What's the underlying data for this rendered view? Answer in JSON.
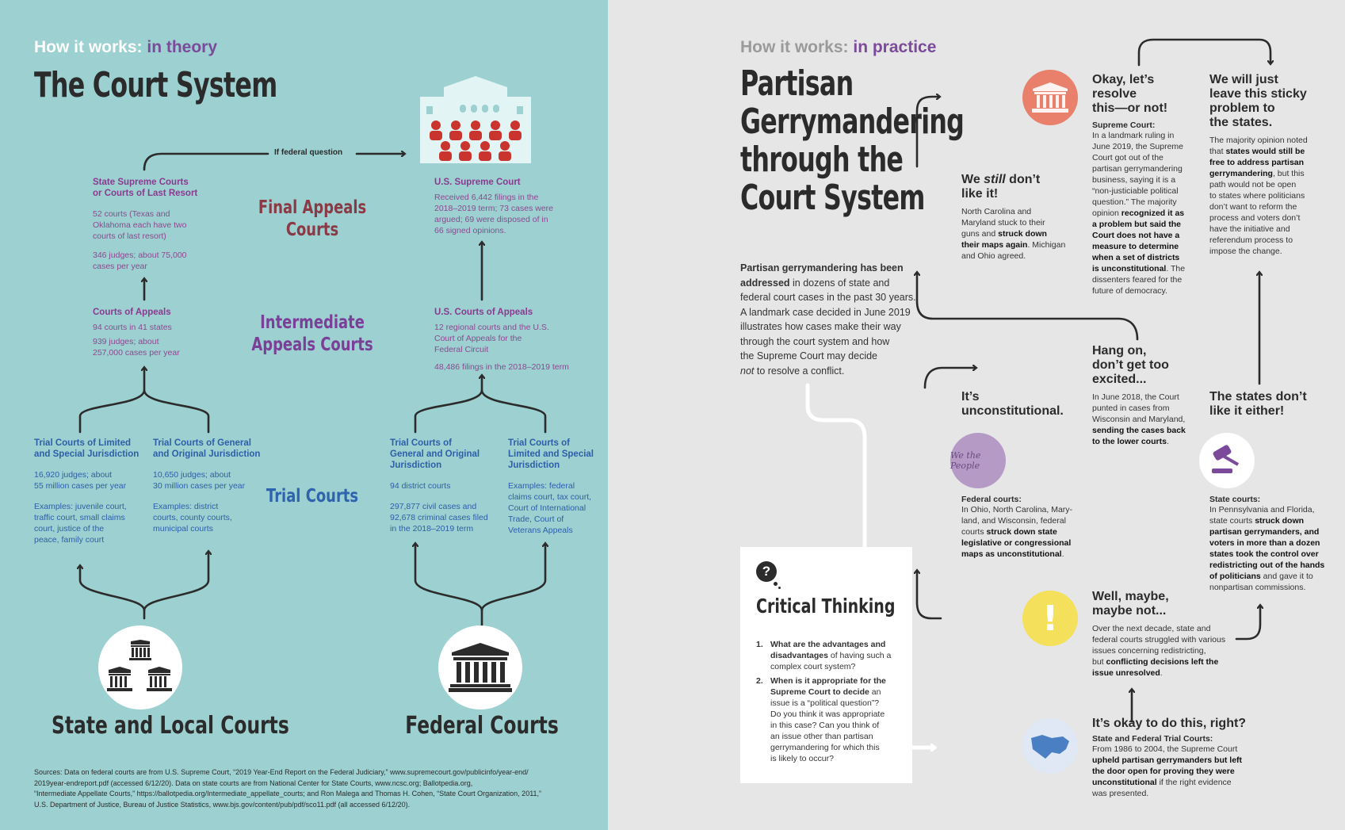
{
  "left": {
    "kicker_prefix": "How it works:",
    "kicker_suffix": "in theory",
    "title": "The Court System",
    "edge_label": "If federal question",
    "levels": {
      "final": "Final Appeals Courts",
      "intermediate": [
        "Intermediate",
        "Appeals Courts"
      ],
      "trial": "Trial Courts"
    },
    "state": {
      "supreme": {
        "heading": [
          "State Supreme Courts",
          "or Courts of Last Resort"
        ],
        "p1": [
          "52 courts (Texas and",
          "Oklahoma each have two",
          "courts of last resort)"
        ],
        "p2": [
          "346 judges; about 75,000",
          "cases per year"
        ]
      },
      "appeals": {
        "heading": "Courts of Appeals",
        "p1": "94 courts in 41 states",
        "p2": [
          "939 judges; about",
          "257,000 cases per year"
        ]
      },
      "trial_limited": {
        "heading": [
          "Trial Courts of Limited",
          "and Special Jurisdiction"
        ],
        "p1": [
          "16,920 judges; about",
          "55 million cases per year"
        ],
        "p2": [
          "Examples: juvenile court,",
          "traffic court, small claims",
          "court, justice of the",
          "peace, family court"
        ]
      },
      "trial_general": {
        "heading": [
          "Trial Courts of General",
          "and Original Jurisdiction"
        ],
        "p1": [
          "10,650 judges; about",
          "30 million cases per year"
        ],
        "p2": [
          "Examples: district",
          "courts, county courts,",
          "municipal courts"
        ]
      },
      "footer": "State and Local Courts"
    },
    "federal": {
      "supreme": {
        "heading": "U.S. Supreme Court",
        "p1": [
          "Received 6,442 filings in the",
          "2018–2019 term; 73 cases were",
          "argued; 69 were disposed of in",
          "66 signed opinions."
        ]
      },
      "appeals": {
        "heading": "U.S. Courts of Appeals",
        "p1": [
          "12 regional courts and the U.S.",
          "Court of Appeals for the",
          "Federal Circuit"
        ],
        "p2": "48,486 filings in the 2018–2019 term"
      },
      "trial_general": {
        "heading": [
          "Trial Courts of",
          "General and Original",
          "Jurisdiction"
        ],
        "p1": "94 district courts",
        "p2": [
          "297,877 civil cases and",
          "92,678 criminal cases filed",
          "in the 2018–2019 term"
        ]
      },
      "trial_limited": {
        "heading": [
          "Trial Courts of",
          "Limited and Special",
          "Jurisdiction"
        ],
        "p1": [
          "Examples: federal",
          "claims court, tax court,",
          "Court of International",
          "Trade, Court of",
          "Veterans Appeals"
        ]
      },
      "footer": "Federal Courts"
    },
    "sources": [
      "Sources: Data on federal courts are from U.S. Supreme Court, “2019 Year-End Report on the Federal Judiciary,” www.supremecourt.gov/publicinfo/year-end/",
      "2019year-endreport.pdf (accessed 6/12/20). Data on state courts are from National Center for State Courts, www.ncsc.org; Ballotpedia.org,",
      "“Intermediate Appellate Courts,” https://ballotpedia.org/Intermediate_appellate_courts; and Ron Malega and Thomas H. Cohen, “State Court Organization, 2011,”",
      "U.S. Department of Justice, Bureau of Justice Statistics, www.bjs.gov/content/pub/pdf/sco11.pdf (all accessed 6/12/20)."
    ],
    "colors": {
      "background": "#9dd0d1",
      "final": "#8a3a45",
      "intermediate": "#7a3f97",
      "trial": "#2e63ad"
    }
  },
  "right": {
    "kicker_prefix": "How it works:",
    "kicker_suffix": "in practice",
    "title": [
      "Partisan",
      "Gerrymandering",
      "through the",
      "Court System"
    ],
    "intro": {
      "bold": [
        "Partisan gerrymandering has been",
        "addressed"
      ],
      "rest_first": " in dozens of state and",
      "lines": [
        "federal court cases in the past 30 years.",
        "A landmark case decided in June 2019",
        "illustrates how cases make their way",
        "through the court system and how",
        "the Supreme Court may decide"
      ],
      "italic": "not",
      "end": " to resolve a conflict."
    },
    "steps": {
      "okay": {
        "heading": [
          "It’s okay to do this, right?"
        ],
        "sub": "State and Federal Trial Courts:",
        "lines": [
          [
            "From 1986 to 2004, the Supreme Court",
            ""
          ],
          [
            "",
            "upheld partisan gerrymanders but left"
          ],
          [
            "",
            "the door open for proving they were"
          ],
          [
            "",
            "unconstitutional",
            " if the right evidence"
          ],
          [
            "was presented.",
            ""
          ]
        ]
      },
      "maybe": {
        "heading": [
          "Well, maybe,",
          "maybe not..."
        ],
        "lines": [
          [
            "Over the next decade, state and",
            ""
          ],
          [
            "federal courts struggled with various",
            ""
          ],
          [
            "issues concerning redistricting,",
            ""
          ],
          [
            "but ",
            "conflicting decisions left the"
          ],
          [
            "",
            "issue unresolved",
            "."
          ]
        ]
      },
      "unconstitutional": {
        "heading": [
          "It’s",
          "unconstitutional."
        ],
        "sub": "Federal courts:",
        "lines": [
          [
            "In Ohio, North Carolina, Mary-",
            ""
          ],
          [
            "land, and Wisconsin, federal",
            ""
          ],
          [
            "courts ",
            "struck down state"
          ],
          [
            "",
            "legislative or congressional"
          ],
          [
            "",
            "maps as unconstitutional",
            "."
          ]
        ]
      },
      "hang_on": {
        "heading": [
          "Hang on,",
          "don’t get too",
          "excited..."
        ],
        "lines": [
          [
            "In June 2018, the Court",
            ""
          ],
          [
            "punted in cases from",
            ""
          ],
          [
            "Wisconsin and Maryland,",
            ""
          ],
          [
            "",
            "sending the cases back"
          ],
          [
            "",
            "to the lower courts",
            "."
          ]
        ]
      },
      "still": {
        "heading_pre": "We ",
        "heading_em": "still",
        "heading_post": " don’t",
        "heading_line2": "like it!",
        "lines": [
          [
            "North Carolina and",
            ""
          ],
          [
            "Maryland stuck to their",
            ""
          ],
          [
            "guns and ",
            "struck down"
          ],
          [
            "",
            "their maps again",
            ". Michigan"
          ],
          [
            "and Ohio agreed.",
            ""
          ]
        ]
      },
      "resolve": {
        "heading": [
          "Okay, let’s",
          "resolve",
          "this—or not!"
        ],
        "sub": "Supreme Court:",
        "lines": [
          [
            "In a landmark ruling in",
            ""
          ],
          [
            "June 2019, the Supreme",
            ""
          ],
          [
            "Court got out of the",
            ""
          ],
          [
            "partisan gerrymandering",
            ""
          ],
          [
            "business, saying it is a",
            ""
          ],
          [
            "“non-justiciable political",
            ""
          ],
          [
            "question.” The majority",
            ""
          ],
          [
            "opinion ",
            "recognized it as"
          ],
          [
            "",
            "a problem but said the"
          ],
          [
            "",
            "Court does not have a"
          ],
          [
            "",
            "measure to determine"
          ],
          [
            "",
            "when a set of districts"
          ],
          [
            "",
            "is unconstitutional",
            ". The"
          ],
          [
            "dissenters feared for the",
            ""
          ],
          [
            "future of democracy.",
            ""
          ]
        ]
      },
      "leave": {
        "heading": [
          "We will just",
          "leave this sticky",
          "problem to",
          "the states."
        ],
        "lines": [
          [
            "The majority opinion noted",
            ""
          ],
          [
            "that ",
            "states would still be"
          ],
          [
            "",
            "free to address partisan"
          ],
          [
            "",
            "gerrymandering",
            ", but this"
          ],
          [
            "path would not be open",
            ""
          ],
          [
            "to states where politicians",
            ""
          ],
          [
            "don’t want to reform the",
            ""
          ],
          [
            "process and voters don’t",
            ""
          ],
          [
            "have the initiative and",
            ""
          ],
          [
            "referendum process to",
            ""
          ],
          [
            "impose the change.",
            ""
          ]
        ]
      },
      "states": {
        "heading": [
          "The states don’t",
          "like it either!"
        ],
        "sub": "State courts:",
        "lines": [
          [
            "In Pennsylvania and Florida,",
            ""
          ],
          [
            "state courts ",
            "struck down"
          ],
          [
            "",
            "partisan gerrymanders, and"
          ],
          [
            "",
            "voters in more than a dozen"
          ],
          [
            "",
            "states took the control over"
          ],
          [
            "",
            "redistricting out of the hands"
          ],
          [
            "",
            "of politicians",
            " and gave it to"
          ],
          [
            "nonpartisan commissions.",
            ""
          ]
        ]
      }
    },
    "critical": {
      "icon": "?",
      "title": "Critical Thinking",
      "q1_num": "1.",
      "q1_bold": [
        "What are the advantages and",
        "disadvantages"
      ],
      "q1_rest": [
        " of having such a",
        "complex court system?"
      ],
      "q2_num": "2.",
      "q2_bold": [
        "When is it appropriate for the",
        "Supreme Court to decide"
      ],
      "q2_rest": [
        " an",
        "issue is a “political question”?",
        "Do you think it was appropriate",
        "in this case? Can you think of",
        "an issue other than partisan",
        "gerrymandering for which this",
        "is likely to occur?"
      ]
    },
    "icons": {
      "supreme": "supreme-court-building-icon",
      "we_the_people": "constitution-icon",
      "gavel": "gavel-icon",
      "warning": "exclamation-icon",
      "map": "map-icon"
    },
    "colors": {
      "background": "#e6e6e6",
      "accent": "#7b4a9a",
      "warning": "#f4e05a",
      "supreme": "#e8806c",
      "map": "#4a7fc4"
    }
  }
}
